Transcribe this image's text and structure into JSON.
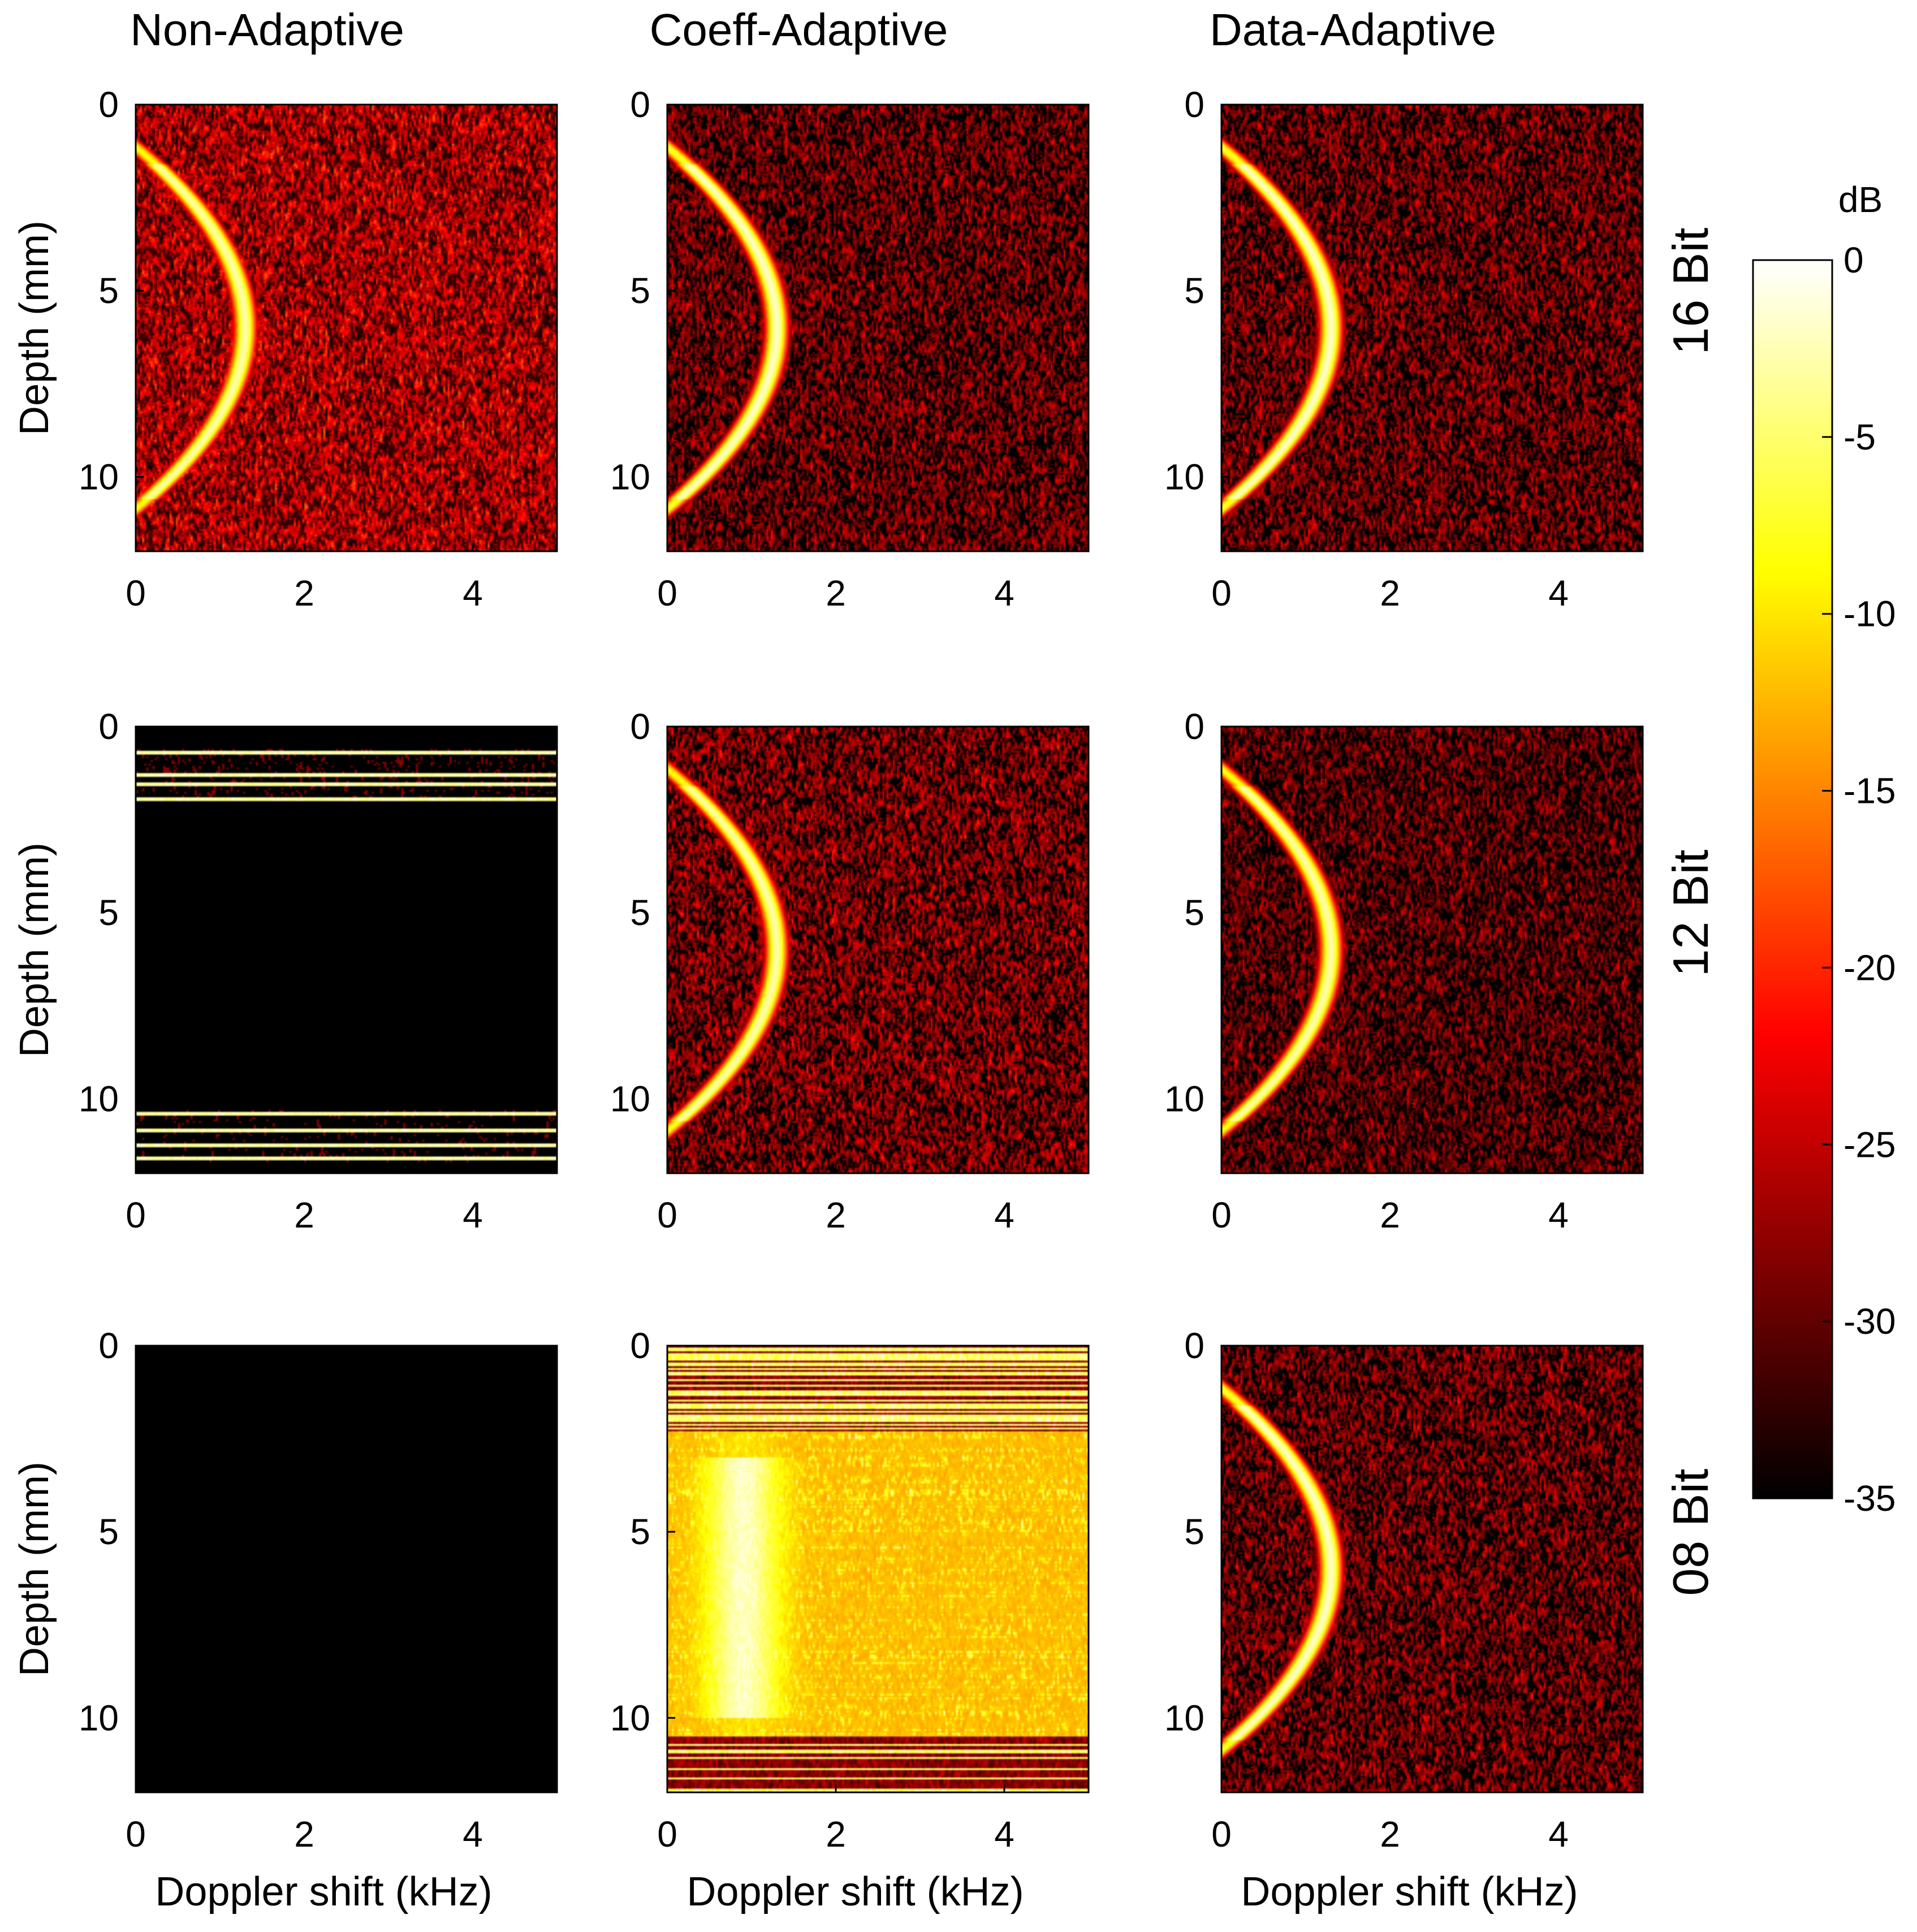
{
  "chart_data": {
    "type": "heatmap",
    "columns": [
      "Non-Adaptive",
      "Coeff-Adaptive",
      "Data-Adaptive"
    ],
    "rows": [
      "16 Bit",
      "12 Bit",
      "08 Bit"
    ],
    "xlabel": "Doppler shift (kHz)",
    "ylabel": "Depth (mm)",
    "xlim": [
      0,
      5
    ],
    "ylim": [
      0,
      12
    ],
    "xticks": [
      0,
      2,
      4
    ],
    "yticks": [
      0,
      5,
      10
    ],
    "colorbar": {
      "label": "dB",
      "min": -35,
      "max": 0,
      "ticks": [
        0,
        -5,
        -10,
        -15,
        -20,
        -25,
        -30,
        -35
      ],
      "colormap": "hot"
    },
    "panels": [
      {
        "row": "16 Bit",
        "column": "Non-Adaptive",
        "pattern": "arc",
        "noise_db": -26,
        "arc_peak_db": -3
      },
      {
        "row": "16 Bit",
        "column": "Coeff-Adaptive",
        "pattern": "arc",
        "noise_db": -30,
        "arc_peak_db": -2
      },
      {
        "row": "16 Bit",
        "column": "Data-Adaptive",
        "pattern": "arc",
        "noise_db": -30,
        "arc_peak_db": -2
      },
      {
        "row": "12 Bit",
        "column": "Non-Adaptive",
        "pattern": "stripes",
        "noise_db": -35
      },
      {
        "row": "12 Bit",
        "column": "Coeff-Adaptive",
        "pattern": "arc",
        "noise_db": -29,
        "arc_peak_db": -3
      },
      {
        "row": "12 Bit",
        "column": "Data-Adaptive",
        "pattern": "arc",
        "noise_db": -31,
        "arc_peak_db": -3
      },
      {
        "row": "08 Bit",
        "column": "Non-Adaptive",
        "pattern": "blank",
        "noise_db": -35
      },
      {
        "row": "08 Bit",
        "column": "Coeff-Adaptive",
        "pattern": "corrupt",
        "noise_db": -20,
        "arc_peak_db": -8
      },
      {
        "row": "08 Bit",
        "column": "Data-Adaptive",
        "pattern": "arc",
        "noise_db": -30,
        "arc_peak_db": -2
      }
    ]
  }
}
